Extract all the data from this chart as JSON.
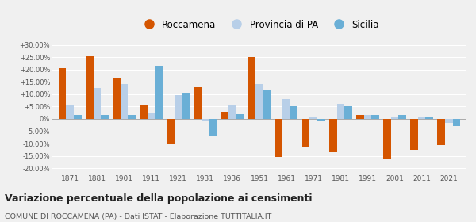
{
  "years": [
    1871,
    1881,
    1901,
    1911,
    1921,
    1931,
    1936,
    1951,
    1961,
    1971,
    1981,
    1991,
    2001,
    2011,
    2021
  ],
  "roccamena": [
    20.5,
    25.5,
    16.5,
    5.5,
    -10.0,
    13.0,
    3.0,
    25.0,
    -15.5,
    -11.5,
    -13.5,
    1.5,
    -16.0,
    -12.5,
    -10.5
  ],
  "provincia_pa": [
    5.5,
    12.5,
    14.0,
    2.5,
    9.5,
    -0.5,
    5.5,
    14.0,
    8.0,
    0.5,
    6.0,
    1.5,
    0.5,
    0.5,
    -1.5
  ],
  "sicilia": [
    1.5,
    1.5,
    1.5,
    21.5,
    10.5,
    -7.0,
    2.0,
    12.0,
    5.0,
    -1.0,
    5.0,
    1.5,
    1.5,
    0.5,
    -3.0
  ],
  "color_roccamena": "#d45500",
  "color_provincia": "#b8cfe8",
  "color_sicilia": "#6aafd6",
  "title": "Variazione percentuale della popolazione ai censimenti",
  "subtitle": "COMUNE DI ROCCAMENA (PA) - Dati ISTAT - Elaborazione TUTTITALIA.IT",
  "legend_labels": [
    "Roccamena",
    "Provincia di PA",
    "Sicilia"
  ],
  "ylim": [
    -22,
    32
  ],
  "yticks": [
    -20,
    -15,
    -10,
    -5,
    0,
    5,
    10,
    15,
    20,
    25,
    30
  ],
  "bg_color": "#f0f0f0",
  "grid_color": "#ffffff"
}
